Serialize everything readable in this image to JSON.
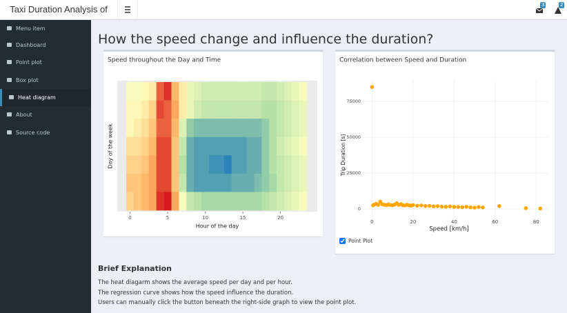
{
  "header": {
    "title": "Taxi Duration Analysis of NYC",
    "messages_badge": "3",
    "warnings_badge": "2"
  },
  "sidebar": {
    "items": [
      "Menu item",
      "Dashboard",
      "Point plot",
      "Box plot",
      "Heat diagram",
      "About",
      "Source code"
    ],
    "active": 4
  },
  "page": {
    "title": "How the speed change and influence the duration?",
    "checkbox": {
      "label": "Point Plot",
      "checked": true
    },
    "explanation": {
      "title": "Brief Explanation",
      "lines": [
        "The heat diagarm shows the average speed per day and per hour.",
        "The regression curve shows how the speed influence the duration.",
        "Users can manually click the button beneath the right-side graph to view the point plot."
      ]
    }
  },
  "chart_data": [
    {
      "type": "heatmap",
      "title": "Speed throughout the Day and Time",
      "x_label": "Hour of the day",
      "y_label": "Day of the week",
      "x": [
        0,
        1,
        2,
        3,
        4,
        5,
        6,
        7,
        8,
        9,
        10,
        11,
        12,
        13,
        14,
        15,
        16,
        17,
        18,
        19,
        20,
        21,
        22,
        23
      ],
      "z": [
        [
          20,
          20,
          21,
          22,
          30,
          32,
          26,
          22,
          19,
          18,
          17,
          17,
          17,
          17,
          17,
          17,
          17,
          17,
          16,
          16,
          17,
          18,
          19,
          20
        ],
        [
          21,
          21,
          22,
          24,
          31,
          30,
          27,
          22,
          19,
          17,
          16,
          16,
          16,
          16,
          16,
          16,
          16,
          16,
          15,
          15,
          16,
          17,
          18,
          19
        ],
        [
          21,
          22,
          23,
          25,
          30,
          30,
          26,
          18,
          13,
          12,
          12,
          12,
          12,
          12,
          12,
          12,
          12,
          12,
          13,
          15,
          16,
          17,
          18,
          19
        ],
        [
          23,
          23,
          24,
          26,
          31,
          31,
          25,
          16,
          11,
          10,
          10,
          10,
          10,
          10,
          10,
          10,
          11,
          11,
          13,
          15,
          17,
          18,
          19,
          20
        ],
        [
          24,
          24,
          25,
          27,
          31,
          31,
          25,
          15,
          11,
          10,
          10,
          9,
          9,
          8,
          10,
          10,
          11,
          11,
          13,
          15,
          16,
          17,
          18,
          19
        ],
        [
          25,
          25,
          26,
          27,
          31,
          31,
          25,
          16,
          11,
          10,
          10,
          10,
          10,
          10,
          11,
          11,
          11,
          12,
          13,
          14,
          16,
          17,
          18,
          19
        ],
        [
          24,
          25,
          26,
          27,
          32,
          33,
          27,
          20,
          16,
          15,
          14,
          14,
          14,
          14,
          14,
          14,
          14,
          14,
          15,
          16,
          17,
          18,
          19,
          20
        ]
      ],
      "colors": [
        "#2b83ba",
        "#abdda4",
        "#ffffbf",
        "#fdae61",
        "#d7191c"
      ],
      "xlim": [
        -1.7,
        24.9
      ],
      "xticks": [
        0,
        5,
        10,
        15,
        20
      ]
    },
    {
      "type": "scatter",
      "title": "Correlation between Speed and Duration",
      "x_label": "Speed [km/h]",
      "y_label": "Trip Duration [s]",
      "color": "#ffa500",
      "grid": true,
      "x": [
        0,
        4,
        0.5,
        1,
        2,
        3,
        5,
        6,
        7,
        8,
        9,
        10,
        11,
        12,
        13,
        14,
        15,
        16,
        17,
        18,
        19,
        20,
        22,
        24,
        26,
        28,
        30,
        32,
        34,
        36,
        38,
        40,
        42,
        44,
        46,
        48,
        50,
        52,
        54,
        62,
        75,
        82
      ],
      "y": [
        85000,
        5000,
        2500,
        3000,
        3500,
        2800,
        3200,
        2900,
        2600,
        3100,
        2700,
        2500,
        3000,
        4000,
        2800,
        3300,
        2600,
        2400,
        2900,
        2500,
        2300,
        2700,
        2200,
        2400,
        2000,
        2100,
        1800,
        1900,
        1600,
        1500,
        1700,
        1400,
        1300,
        1200,
        1500,
        1100,
        900,
        1300,
        1000,
        2000,
        500,
        300
      ],
      "xlim": [
        -4.5,
        86.3
      ],
      "ylim": [
        -5770,
        90385
      ],
      "xticks": [
        0,
        20,
        40,
        60,
        80
      ],
      "yticks": [
        0,
        25000,
        50000,
        75000
      ]
    }
  ]
}
